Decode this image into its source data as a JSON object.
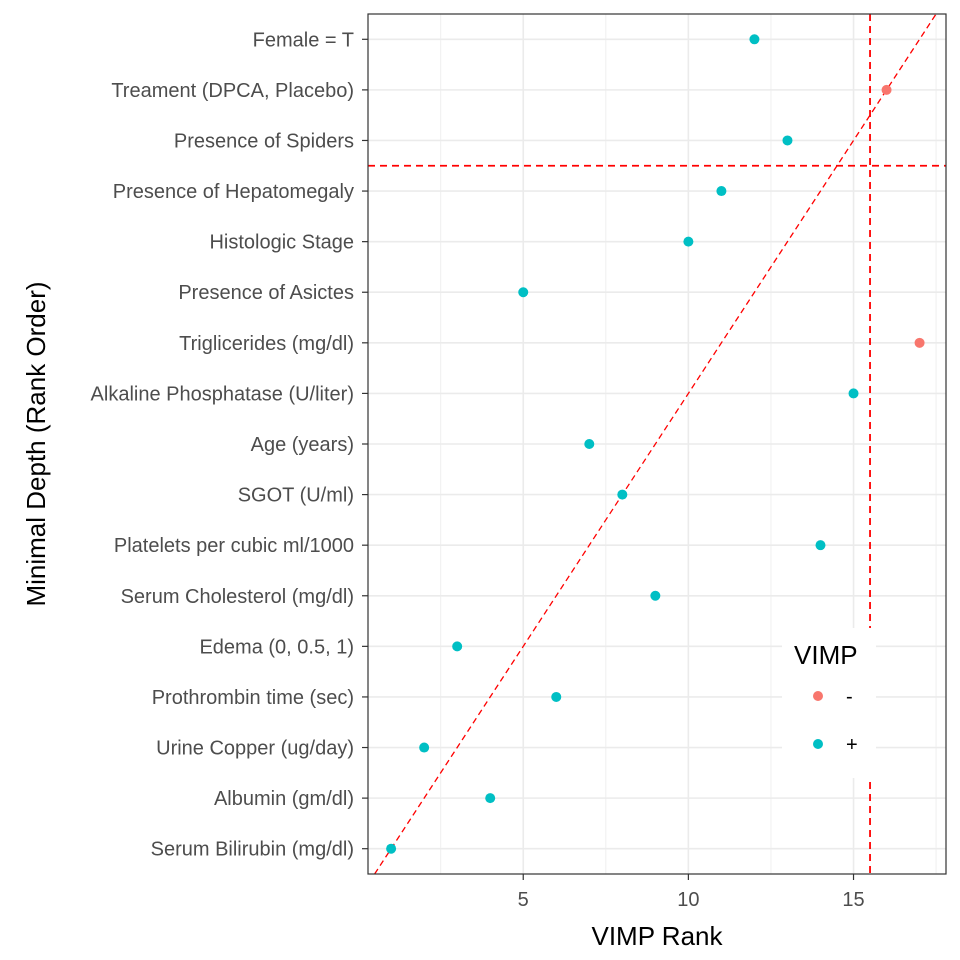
{
  "chart_data": {
    "type": "scatter",
    "title": "",
    "xlabel": "VIMP Rank",
    "ylabel": "Minimal Depth (Rank Order)",
    "xlim": [
      0.3,
      17.8
    ],
    "ylim": [
      0.5,
      17.5
    ],
    "x_ticks": [
      5,
      10,
      15
    ],
    "categories": [
      "Serum Bilirubin (mg/dl)",
      "Albumin (gm/dl)",
      "Urine Copper (ug/day)",
      "Prothrombin time (sec)",
      "Edema (0, 0.5, 1)",
      "Serum Cholesterol (mg/dl)",
      "Platelets per cubic ml/1000",
      "SGOT (U/ml)",
      "Age (years)",
      "Alkaline Phosphatase (U/liter)",
      "Triglicerides (mg/dl)",
      "Presence of Asictes",
      "Histologic Stage",
      "Presence of Hepatomegaly",
      "Presence of Spiders",
      "Treament (DPCA, Placebo)",
      "Female = T"
    ],
    "points": [
      {
        "x": 1,
        "y": 1,
        "vimp": "+"
      },
      {
        "x": 4,
        "y": 2,
        "vimp": "+"
      },
      {
        "x": 2,
        "y": 3,
        "vimp": "+"
      },
      {
        "x": 6,
        "y": 4,
        "vimp": "+"
      },
      {
        "x": 3,
        "y": 5,
        "vimp": "+"
      },
      {
        "x": 9,
        "y": 6,
        "vimp": "+"
      },
      {
        "x": 14,
        "y": 7,
        "vimp": "+"
      },
      {
        "x": 8,
        "y": 8,
        "vimp": "+"
      },
      {
        "x": 7,
        "y": 9,
        "vimp": "+"
      },
      {
        "x": 15,
        "y": 10,
        "vimp": "+"
      },
      {
        "x": 17,
        "y": 11,
        "vimp": "-"
      },
      {
        "x": 5,
        "y": 12,
        "vimp": "+"
      },
      {
        "x": 10,
        "y": 13,
        "vimp": "+"
      },
      {
        "x": 11,
        "y": 14,
        "vimp": "+"
      },
      {
        "x": 13,
        "y": 15,
        "vimp": "+"
      },
      {
        "x": 16,
        "y": 16,
        "vimp": "-"
      },
      {
        "x": 12,
        "y": 17,
        "vimp": "+"
      }
    ],
    "reference_lines": {
      "vertical_x": 15.5,
      "horizontal_y": 14.5,
      "diagonal": "y = x",
      "style": "dashed",
      "color": "#ff0000"
    },
    "legend": {
      "title": "VIMP",
      "entries": [
        {
          "label": "-",
          "color": "#f8766d"
        },
        {
          "label": "+",
          "color": "#00bfc4"
        }
      ],
      "placement": "bottom-right inside"
    },
    "grid": true,
    "colors": {
      "neg": "#f8766d",
      "pos": "#00bfc4",
      "ref": "#ff0000"
    }
  }
}
